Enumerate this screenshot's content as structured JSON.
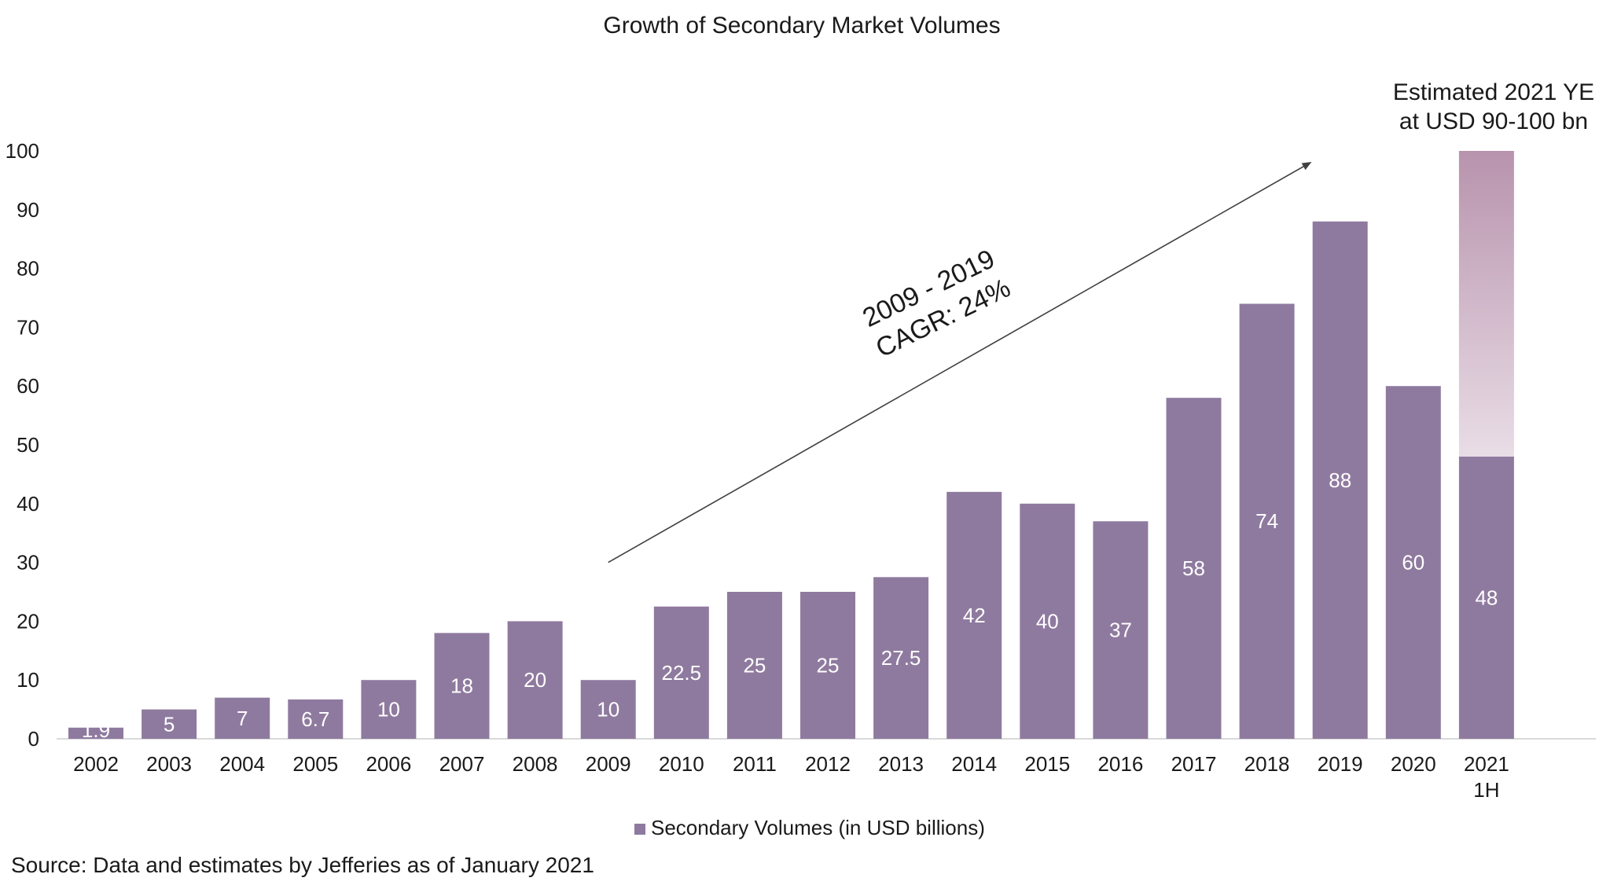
{
  "chart_data": {
    "type": "bar",
    "title": "Growth of Secondary Market Volumes",
    "categories": [
      "2002",
      "2003",
      "2004",
      "2005",
      "2006",
      "2007",
      "2008",
      "2009",
      "2010",
      "2011",
      "2012",
      "2013",
      "2014",
      "2015",
      "2016",
      "2017",
      "2018",
      "2019",
      "2020",
      "2021\n1H"
    ],
    "series": [
      {
        "name": "Secondary Volumes (in USD billions)",
        "values": [
          1.9,
          5,
          7,
          6.7,
          10,
          18,
          20,
          10,
          22.5,
          25,
          25,
          27.5,
          42,
          40,
          37,
          58,
          74,
          88,
          60,
          48
        ],
        "labels": [
          "1.9",
          "5",
          "7",
          "6.7",
          "10",
          "18",
          "20",
          "10",
          "22.5",
          "25",
          "25",
          "27.5",
          "42",
          "40",
          "37",
          "58",
          "74",
          "88",
          "60",
          "48"
        ]
      }
    ],
    "estimate_range": {
      "category": "2021\n1H",
      "from": 48,
      "to": 100
    },
    "ylim": [
      0,
      100
    ],
    "yticks": [
      0,
      10,
      20,
      30,
      40,
      50,
      60,
      70,
      80,
      90,
      100
    ],
    "xlabel": "",
    "ylabel": "",
    "grid": false,
    "legend": "bottom-center",
    "annotations": {
      "cagr_line1": "2009 - 2019",
      "cagr_line2": "CAGR: 24%",
      "estimate_line1": "Estimated 2021 YE",
      "estimate_line2": "at USD 90-100 bn",
      "arrow_from": {
        "x": "2009",
        "y": 30
      },
      "arrow_to": {
        "x": "2019",
        "y": 98
      }
    },
    "source": "Source: Data and estimates by Jefferies as of January 2021",
    "colors": {
      "bar": "#8f7a9f",
      "estimate_top": "#b893ad",
      "estimate_bottom": "#e9dde6",
      "bar_label": "#ffffff",
      "text": "#1a1a1a",
      "axis": "#d9d9d9",
      "arrow": "#404040"
    }
  }
}
